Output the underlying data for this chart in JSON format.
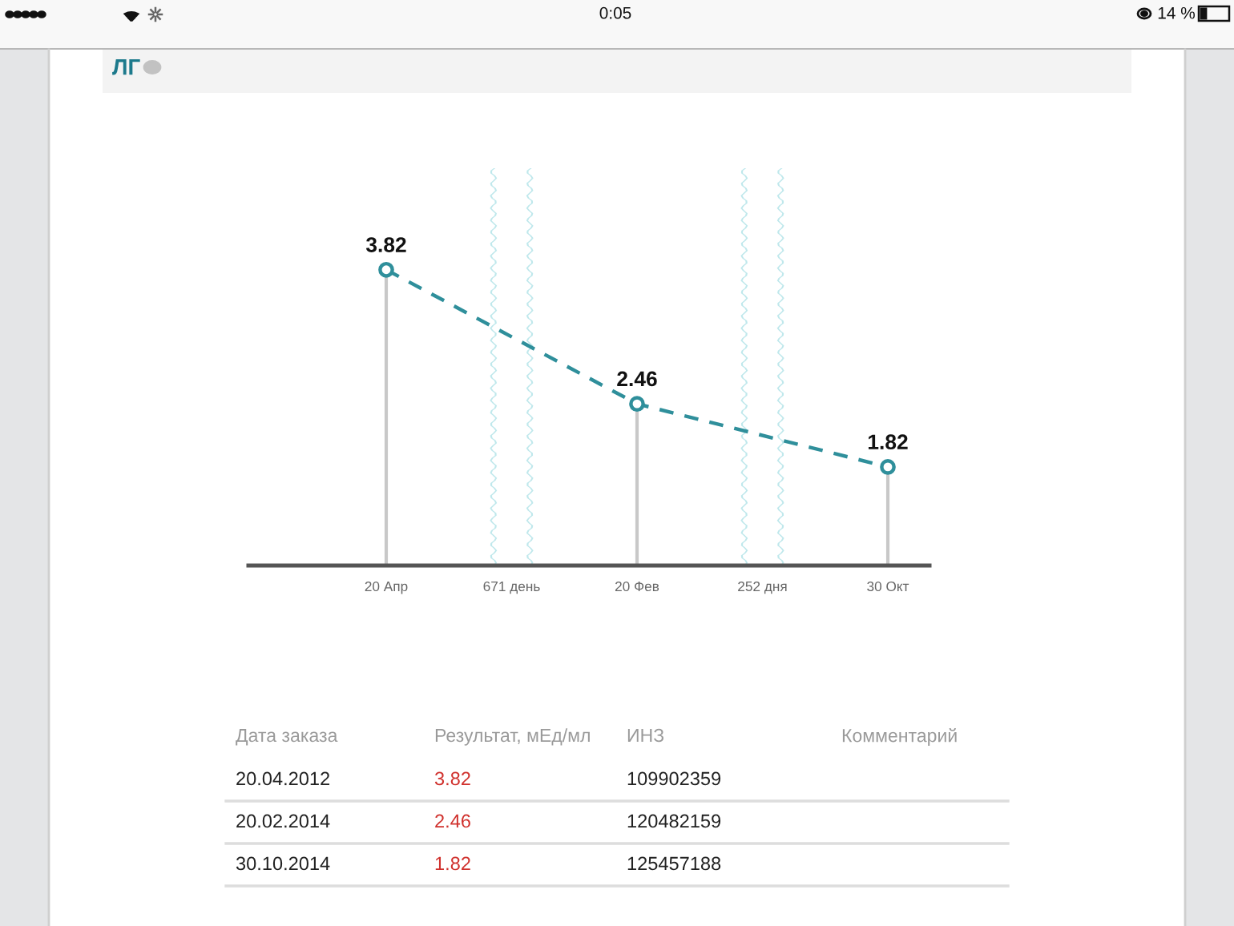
{
  "chart_data": {
    "type": "lollipop",
    "title": "ЛГ",
    "categories": [
      "20 Апр",
      "671 день",
      "20 Фев",
      "252 дня",
      "30 Окт"
    ],
    "series": [
      {
        "color": "#2f8f9b",
        "values": [
          3.82,
          null,
          2.46,
          null,
          1.82
        ]
      }
    ],
    "marker": "circle",
    "line_style": "dashed",
    "data_labels": true,
    "annotations": [
      "0:05",
      "14 %",
      "Дата заказа",
      "Результат, мЕд/мл",
      "ИНЗ",
      "Комментарий",
      "20.04.2012",
      "3.82",
      "109902359",
      "20.02.2014",
      "2.46",
      "120482159",
      "30.10.2014",
      "1.82",
      "125457188"
    ]
  }
}
